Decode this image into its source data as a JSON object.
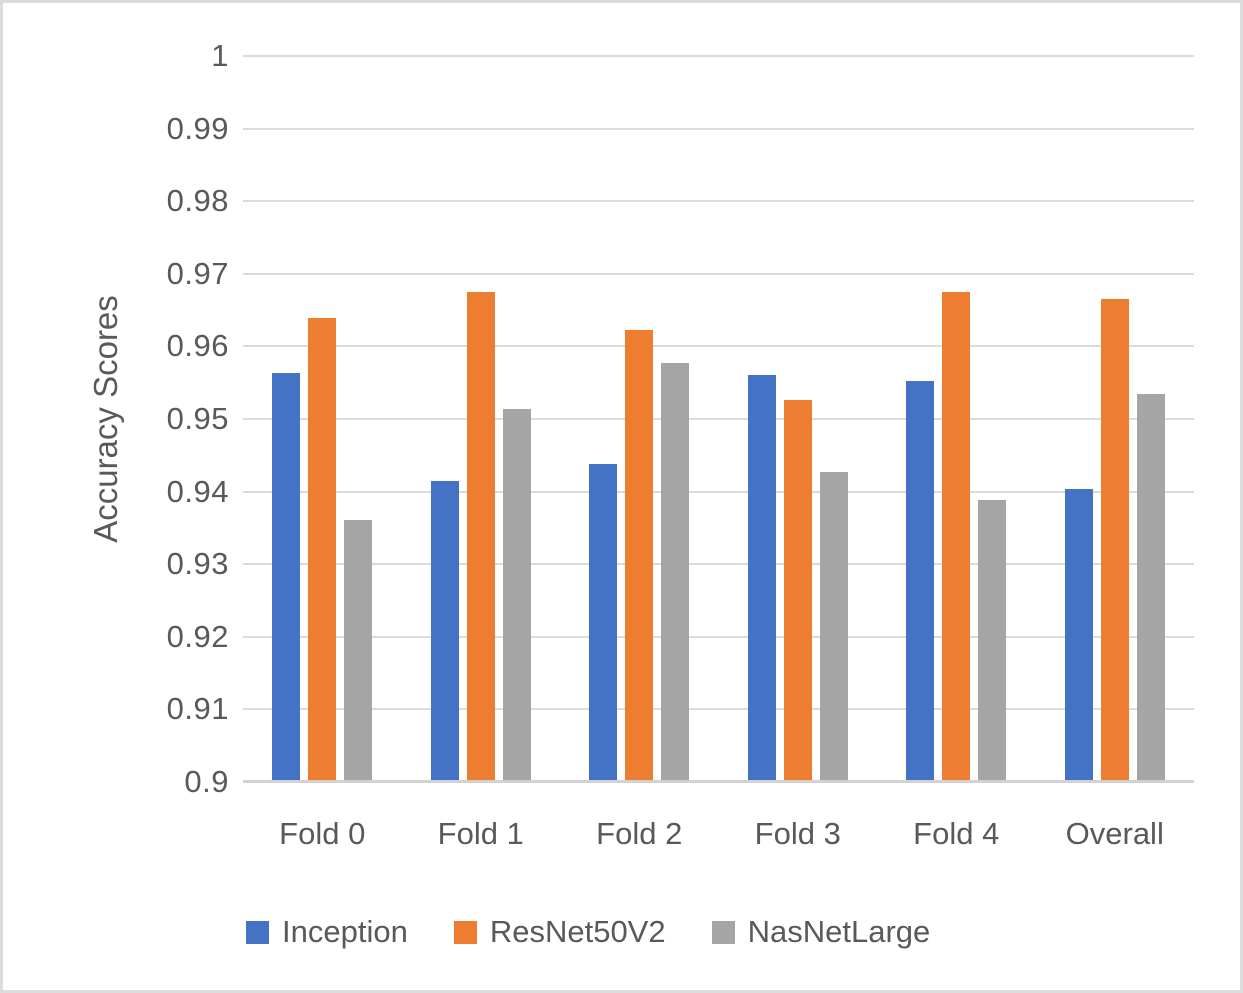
{
  "figure": {
    "background": "#FFFFFF",
    "border_color": "#DCDCDC",
    "text_color": "#595959",
    "gridline_color": "#DBDBDB",
    "axis_line_color": "#D2D2D2"
  },
  "chart_data": {
    "type": "bar",
    "title": "",
    "xlabel": "",
    "ylabel": "Accuracy Scores",
    "categories": [
      "Fold 0",
      "Fold 1",
      "Fold 2",
      "Fold 3",
      "Fold 4",
      "Overall"
    ],
    "series": [
      {
        "name": "Inception",
        "color": "#4472C4",
        "values": [
          0.9563,
          0.9414,
          0.9438,
          0.9561,
          0.9552,
          0.9403
        ]
      },
      {
        "name": "ResNet50V2",
        "color": "#ED7D31",
        "values": [
          0.9639,
          0.9675,
          0.9623,
          0.9526,
          0.9675,
          0.9665
        ]
      },
      {
        "name": "NasNetLarge",
        "color": "#A5A5A5",
        "values": [
          0.9361,
          0.9514,
          0.9577,
          0.9427,
          0.9389,
          0.9534
        ]
      }
    ],
    "ylim": [
      0.9,
      1.0
    ],
    "ytick_step": 0.01,
    "ytick_labels": [
      "1",
      "0.99",
      "0.98",
      "0.97",
      "0.96",
      "0.95",
      "0.94",
      "0.93",
      "0.92",
      "0.91",
      "0.9"
    ],
    "grid": "horizontal",
    "legend_position": "bottom"
  }
}
